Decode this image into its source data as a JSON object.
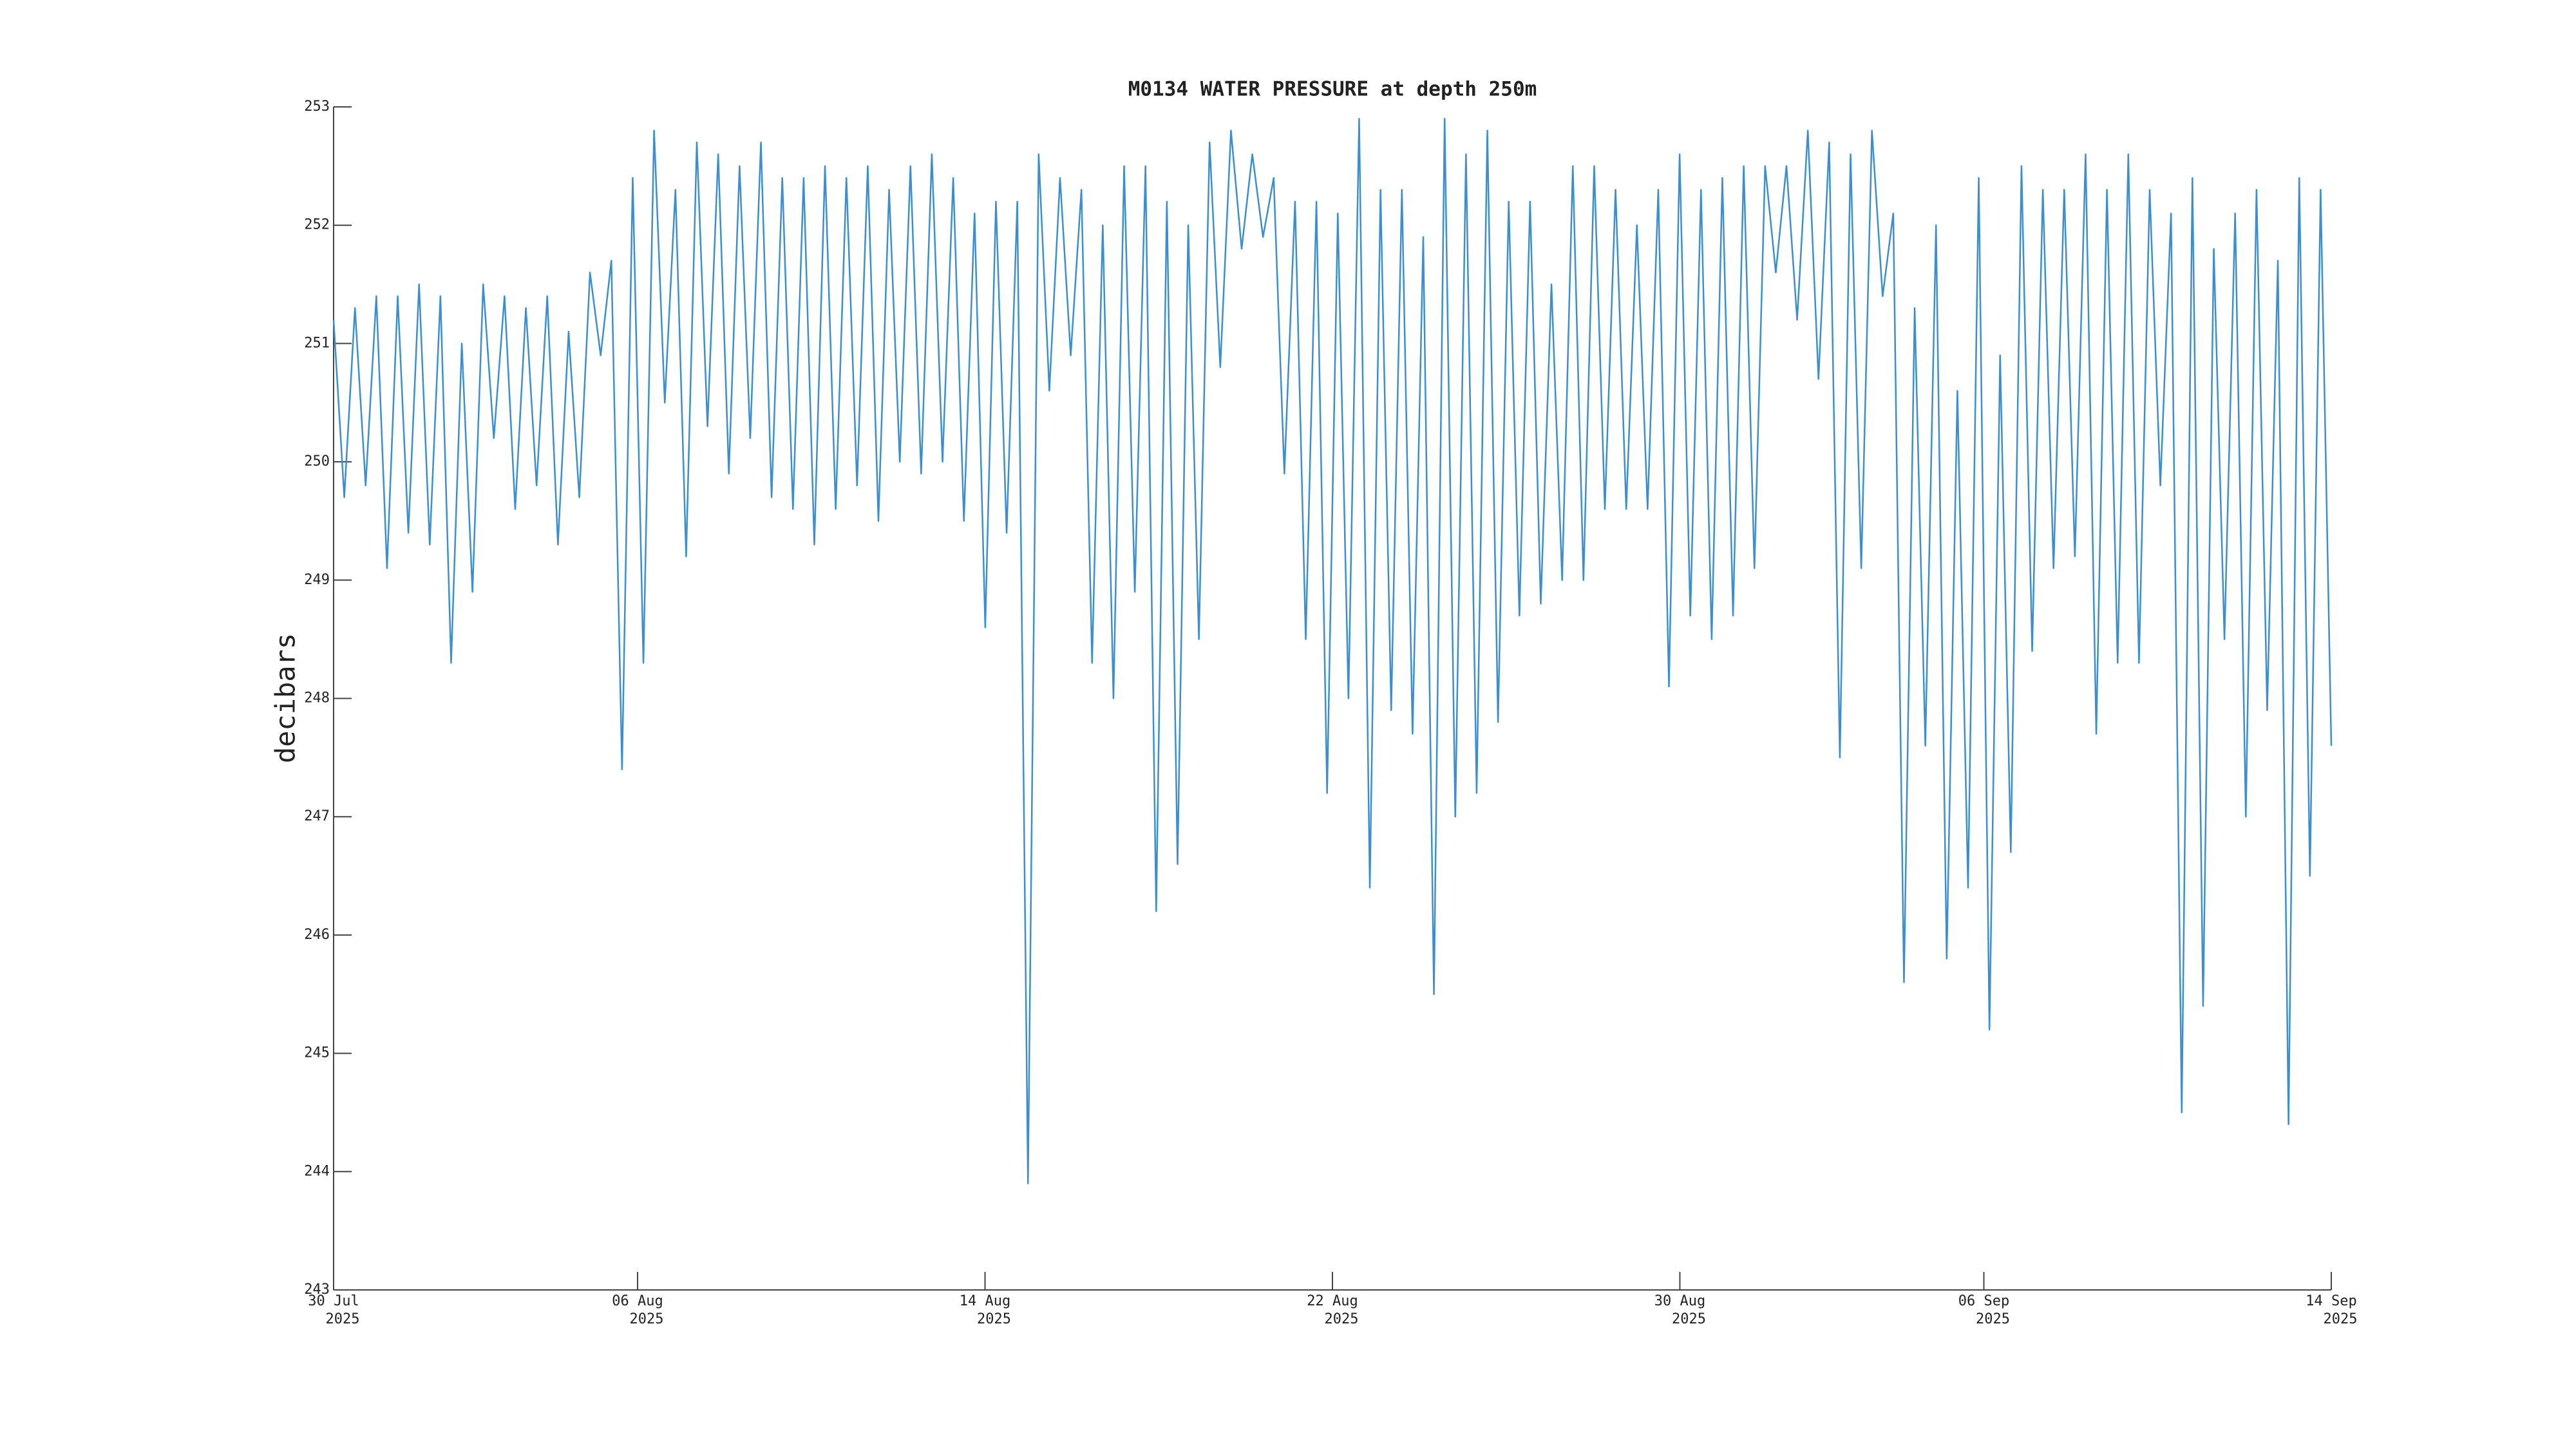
{
  "chart_data": {
    "type": "line",
    "title": "M0134 WATER PRESSURE at depth 250m",
    "y_label": "decibars",
    "xlim": [
      "2025-07-30",
      "2025-09-14"
    ],
    "xticks": [
      {
        "value": "2025-07-30",
        "label": [
          "30 Jul",
          "2025"
        ]
      },
      {
        "value": "2025-08-06",
        "label": [
          "06 Aug",
          "2025"
        ]
      },
      {
        "value": "2025-08-14",
        "label": [
          "14 Aug",
          "2025"
        ]
      },
      {
        "value": "2025-08-22",
        "label": [
          "22 Aug",
          "2025"
        ]
      },
      {
        "value": "2025-08-30",
        "label": [
          "30 Aug",
          "2025"
        ]
      },
      {
        "value": "2025-09-06",
        "label": [
          "06 Sep",
          "2025"
        ]
      },
      {
        "value": "2025-09-14",
        "label": [
          "14 Sep",
          "2025"
        ]
      }
    ],
    "ylim": [
      243,
      253
    ],
    "yticks": [
      243,
      244,
      245,
      246,
      247,
      248,
      249,
      250,
      251,
      252,
      253
    ],
    "grid": false,
    "series": [
      {
        "color": "#3b8fd1",
        "values": [
          251.2,
          249.7,
          251.3,
          249.8,
          251.4,
          249.1,
          251.4,
          249.4,
          251.5,
          249.3,
          251.4,
          248.3,
          251.0,
          248.9,
          251.5,
          250.2,
          251.4,
          249.6,
          251.3,
          249.8,
          251.4,
          249.3,
          251.1,
          249.7,
          251.6,
          250.9,
          251.7,
          247.4,
          252.4,
          248.3,
          252.8,
          250.5,
          252.3,
          249.2,
          252.7,
          250.3,
          252.6,
          249.9,
          252.5,
          250.2,
          252.7,
          249.7,
          252.4,
          249.6,
          252.4,
          249.3,
          252.5,
          249.6,
          252.4,
          249.8,
          252.5,
          249.5,
          252.3,
          250.0,
          252.5,
          249.9,
          252.6,
          250.0,
          252.4,
          249.5,
          252.1,
          248.6,
          252.2,
          249.4,
          252.2,
          243.9,
          252.6,
          250.6,
          252.4,
          250.9,
          252.3,
          248.3,
          252.0,
          248.0,
          252.5,
          248.9,
          252.5,
          246.2,
          252.2,
          246.6,
          252.0,
          248.5,
          252.7,
          250.8,
          252.8,
          251.8,
          252.6,
          251.9,
          252.4,
          249.9,
          252.2,
          248.5,
          252.2,
          247.2,
          252.1,
          248.0,
          252.9,
          246.4,
          252.3,
          247.9,
          252.3,
          247.7,
          251.9,
          245.5,
          252.9,
          247.0,
          252.6,
          247.2,
          252.8,
          247.8,
          252.2,
          248.7,
          252.2,
          248.8,
          251.5,
          249.0,
          252.5,
          249.0,
          252.5,
          249.6,
          252.3,
          249.6,
          252.0,
          249.6,
          252.3,
          248.1,
          252.6,
          248.7,
          252.3,
          248.5,
          252.4,
          248.7,
          252.5,
          249.1,
          252.5,
          251.6,
          252.5,
          251.2,
          252.8,
          250.7,
          252.7,
          247.5,
          252.6,
          249.1,
          252.8,
          251.4,
          252.1,
          245.6,
          251.3,
          247.6,
          252.0,
          245.8,
          250.6,
          246.4,
          252.4,
          245.2,
          250.9,
          246.7,
          252.5,
          248.4,
          252.3,
          249.1,
          252.3,
          249.2,
          252.6,
          247.7,
          252.3,
          248.3,
          252.6,
          248.3,
          252.3,
          249.8,
          252.1,
          244.5,
          252.4,
          245.4,
          251.8,
          248.5,
          252.1,
          247.0,
          252.3,
          247.9,
          251.7,
          244.4,
          252.4,
          246.5,
          252.3,
          247.6
        ]
      }
    ]
  }
}
